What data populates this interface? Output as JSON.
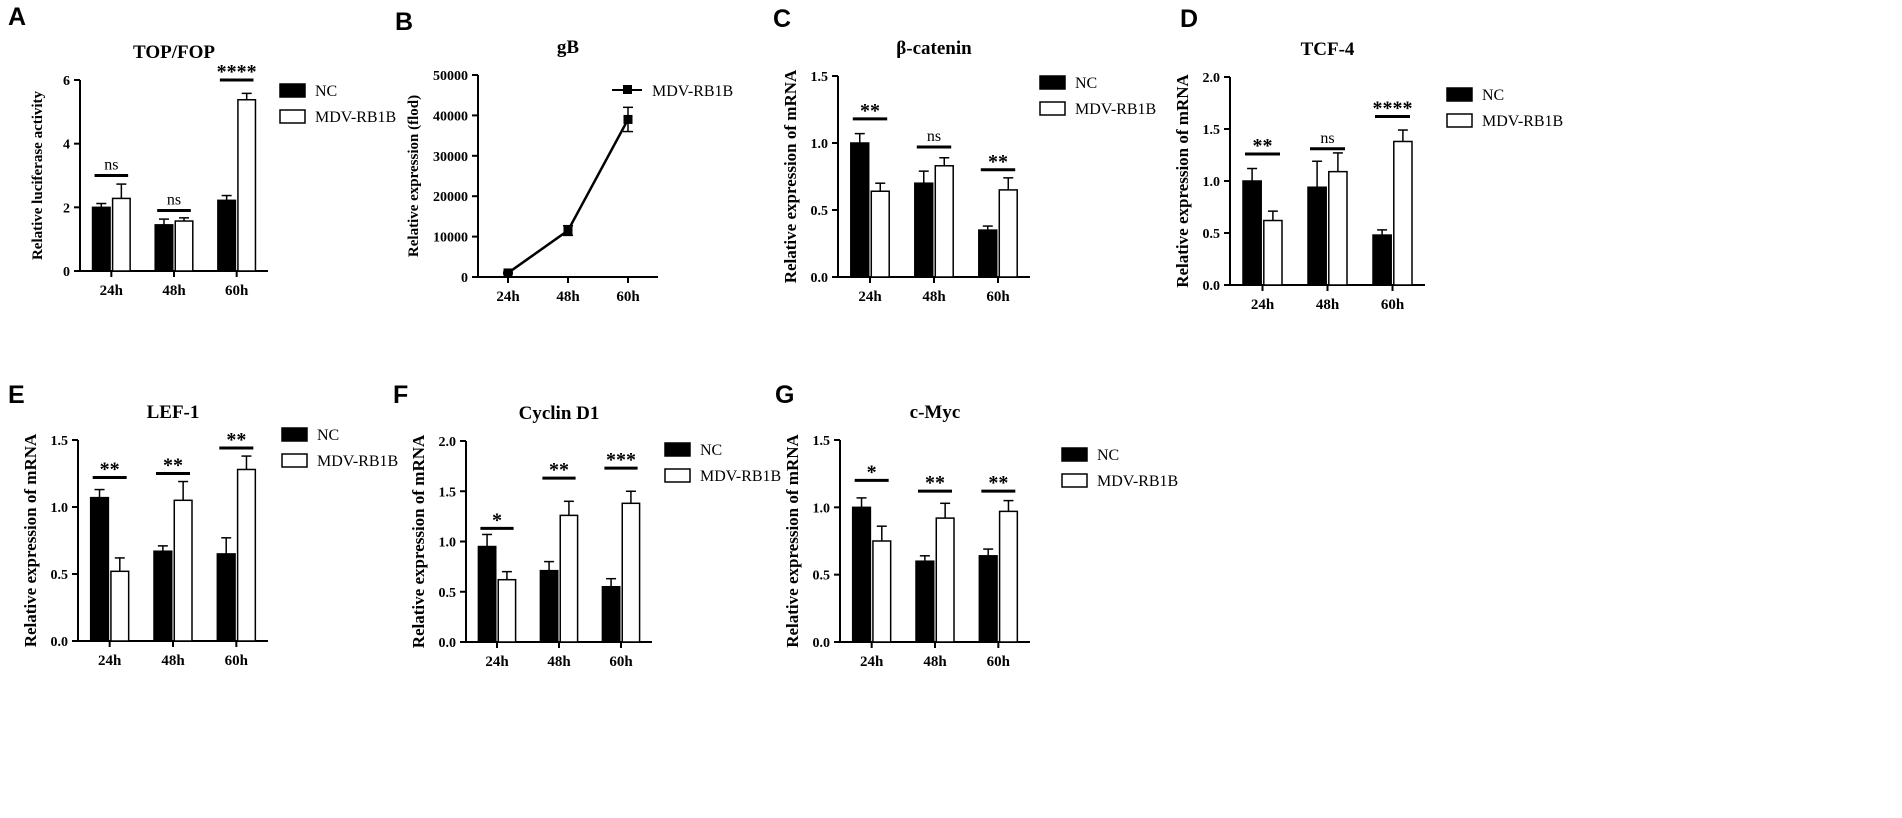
{
  "figure": {
    "colors": {
      "nc": "#000000",
      "rb1b": "#ffffff",
      "stroke": "#000000",
      "text": "#000000"
    }
  },
  "chart_data": [
    {
      "id": "A",
      "type": "bar",
      "letter": "A",
      "title": "TOP/FOP",
      "ylabel": "Relative luciferase activity",
      "xlabel": "",
      "categories": [
        "24h",
        "48h",
        "60h"
      ],
      "ylim": [
        0,
        6
      ],
      "yticks": [
        0,
        2,
        4,
        6
      ],
      "ytick_labels": [
        "0",
        "2",
        "4",
        "6"
      ],
      "series": [
        {
          "name": "NC",
          "values": [
            2.0,
            1.45,
            2.22
          ],
          "errors": [
            0.12,
            0.18,
            0.15
          ]
        },
        {
          "name": "MDV-RB1B",
          "values": [
            2.28,
            1.57,
            5.38
          ],
          "errors": [
            0.45,
            0.1,
            0.2
          ]
        }
      ],
      "significance": [
        {
          "label": "ns",
          "y": 3.0
        },
        {
          "label": "ns",
          "y": 1.9
        },
        {
          "label": "****",
          "y": 6.0
        }
      ],
      "legend": [
        "NC",
        "MDV-RB1B"
      ]
    },
    {
      "id": "B",
      "type": "line",
      "letter": "B",
      "title": "gB",
      "ylabel": "Relative expression (flod)",
      "xlabel": "",
      "categories": [
        "24h",
        "48h",
        "60h"
      ],
      "ylim": [
        0,
        50000
      ],
      "yticks": [
        0,
        10000,
        20000,
        30000,
        40000,
        50000
      ],
      "ytick_labels": [
        "0",
        "10000",
        "20000",
        "30000",
        "40000",
        "50000"
      ],
      "series": [
        {
          "name": "MDV-RB1B",
          "values": [
            1000,
            11500,
            39000
          ],
          "errors": [
            200,
            1200,
            3000
          ]
        }
      ],
      "legend": [
        "MDV-RB1B"
      ]
    },
    {
      "id": "C",
      "type": "bar",
      "letter": "C",
      "title": "β-catenin",
      "ylabel": "Relative expression of mRNA",
      "xlabel": "",
      "categories": [
        "24h",
        "48h",
        "60h"
      ],
      "ylim": [
        0,
        1.5
      ],
      "yticks": [
        0,
        0.5,
        1.0,
        1.5
      ],
      "ytick_labels": [
        "0.0",
        "0.5",
        "1.0",
        "1.5"
      ],
      "series": [
        {
          "name": "NC",
          "values": [
            1.0,
            0.7,
            0.35
          ],
          "errors": [
            0.07,
            0.09,
            0.03
          ]
        },
        {
          "name": "MDV-RB1B",
          "values": [
            0.64,
            0.83,
            0.65
          ],
          "errors": [
            0.06,
            0.06,
            0.09
          ]
        }
      ],
      "significance": [
        {
          "label": "**",
          "y": 1.18
        },
        {
          "label": "ns",
          "y": 0.97
        },
        {
          "label": "**",
          "y": 0.8
        }
      ],
      "legend": [
        "NC",
        "MDV-RB1B"
      ]
    },
    {
      "id": "D",
      "type": "bar",
      "letter": "D",
      "title": "TCF-4",
      "ylabel": "Relative expression of mRNA",
      "xlabel": "",
      "categories": [
        "24h",
        "48h",
        "60h"
      ],
      "ylim": [
        0,
        2.0
      ],
      "yticks": [
        0,
        0.5,
        1.0,
        1.5,
        2.0
      ],
      "ytick_labels": [
        "0.0",
        "0.5",
        "1.0",
        "1.5",
        "2.0"
      ],
      "series": [
        {
          "name": "NC",
          "values": [
            1.0,
            0.94,
            0.48
          ],
          "errors": [
            0.12,
            0.25,
            0.05
          ]
        },
        {
          "name": "MDV-RB1B",
          "values": [
            0.62,
            1.09,
            1.38
          ],
          "errors": [
            0.09,
            0.18,
            0.11
          ]
        }
      ],
      "significance": [
        {
          "label": "**",
          "y": 1.26
        },
        {
          "label": "ns",
          "y": 1.31
        },
        {
          "label": "****",
          "y": 1.62
        }
      ],
      "legend": [
        "NC",
        "MDV-RB1B"
      ]
    },
    {
      "id": "E",
      "type": "bar",
      "letter": "E",
      "title": "LEF-1",
      "ylabel": "Relative expression of mRNA",
      "xlabel": "",
      "categories": [
        "24h",
        "48h",
        "60h"
      ],
      "ylim": [
        0,
        1.5
      ],
      "yticks": [
        0,
        0.5,
        1.0,
        1.5
      ],
      "ytick_labels": [
        "0.0",
        "0.5",
        "1.0",
        "1.5"
      ],
      "series": [
        {
          "name": "NC",
          "values": [
            1.07,
            0.67,
            0.65
          ],
          "errors": [
            0.06,
            0.04,
            0.12
          ]
        },
        {
          "name": "MDV-RB1B",
          "values": [
            0.52,
            1.05,
            1.28
          ],
          "errors": [
            0.1,
            0.14,
            0.1
          ]
        }
      ],
      "significance": [
        {
          "label": "**",
          "y": 1.22
        },
        {
          "label": "**",
          "y": 1.25
        },
        {
          "label": "**",
          "y": 1.44
        }
      ],
      "legend": [
        "NC",
        "MDV-RB1B"
      ]
    },
    {
      "id": "F",
      "type": "bar",
      "letter": "F",
      "title": "Cyclin D1",
      "ylabel": "Relative expression of mRNA",
      "xlabel": "",
      "categories": [
        "24h",
        "48h",
        "60h"
      ],
      "ylim": [
        0,
        2.0
      ],
      "yticks": [
        0,
        0.5,
        1.0,
        1.5,
        2.0
      ],
      "ytick_labels": [
        "0.0",
        "0.5",
        "1.0",
        "1.5",
        "2.0"
      ],
      "series": [
        {
          "name": "NC",
          "values": [
            0.95,
            0.71,
            0.55
          ],
          "errors": [
            0.12,
            0.09,
            0.08
          ]
        },
        {
          "name": "MDV-RB1B",
          "values": [
            0.62,
            1.26,
            1.38
          ],
          "errors": [
            0.08,
            0.14,
            0.12
          ]
        }
      ],
      "significance": [
        {
          "label": "*",
          "y": 1.13
        },
        {
          "label": "**",
          "y": 1.63
        },
        {
          "label": "***",
          "y": 1.73
        }
      ],
      "legend": [
        "NC",
        "MDV-RB1B"
      ]
    },
    {
      "id": "G",
      "type": "bar",
      "letter": "G",
      "title": "c-Myc",
      "ylabel": "Relative expression of mRNA",
      "xlabel": "",
      "categories": [
        "24h",
        "48h",
        "60h"
      ],
      "ylim": [
        0,
        1.5
      ],
      "yticks": [
        0,
        0.5,
        1.0,
        1.5
      ],
      "ytick_labels": [
        "0.0",
        "0.5",
        "1.0",
        "1.5"
      ],
      "series": [
        {
          "name": "NC",
          "values": [
            1.0,
            0.6,
            0.64
          ],
          "errors": [
            0.07,
            0.04,
            0.05
          ]
        },
        {
          "name": "MDV-RB1B",
          "values": [
            0.75,
            0.92,
            0.97
          ],
          "errors": [
            0.11,
            0.11,
            0.08
          ]
        }
      ],
      "significance": [
        {
          "label": "*",
          "y": 1.2
        },
        {
          "label": "**",
          "y": 1.12
        },
        {
          "label": "**",
          "y": 1.12
        }
      ],
      "legend": [
        "NC",
        "MDV-RB1B"
      ]
    }
  ]
}
